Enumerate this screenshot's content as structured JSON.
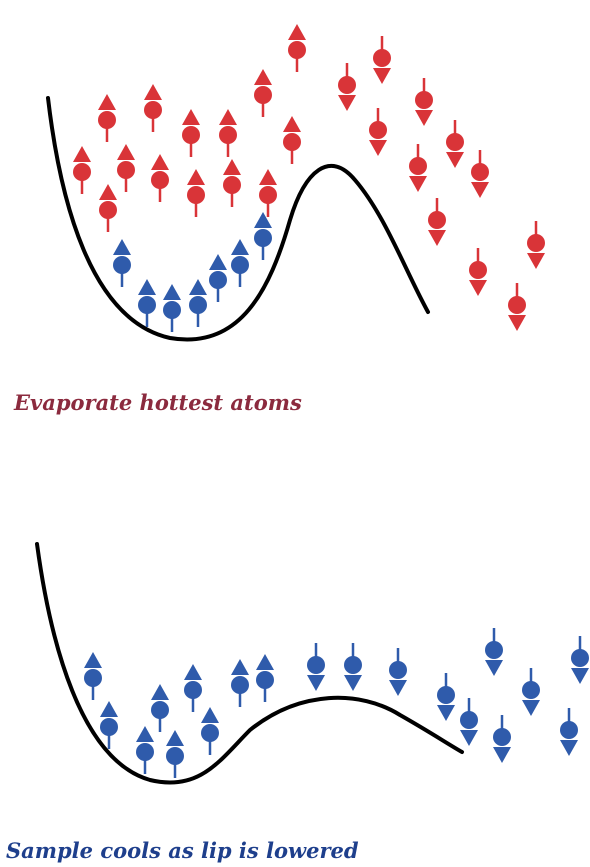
{
  "colors": {
    "hot_atom": "#d93438",
    "cold_atom": "#2f5bab",
    "trap_curve": "#000000",
    "caption_top": "#8b2a3e",
    "caption_bottom": "#1e3f8c"
  },
  "top_panel": {
    "caption": "Evaporate hottest atoms"
  },
  "bottom_panel": {
    "caption": "Sample cools as lip is lowered"
  }
}
